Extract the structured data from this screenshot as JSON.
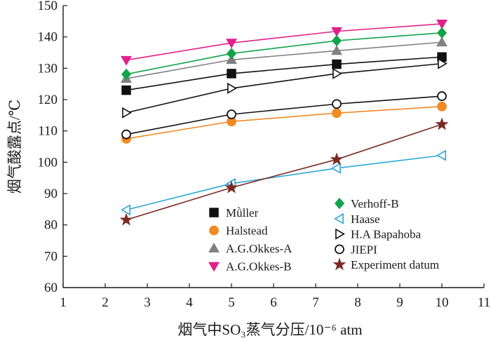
{
  "chart_data": {
    "type": "line",
    "title": "",
    "xlabel": "烟气中SO₃蒸气分压/10⁻⁶ atm",
    "ylabel": "烟气酸露点/℃",
    "xlim": [
      1,
      11
    ],
    "ylim": [
      60,
      150
    ],
    "x_ticks": [
      "1",
      "2",
      "3",
      "4",
      "5",
      "6",
      "7",
      "8",
      "9",
      "10",
      "11"
    ],
    "y_ticks": [
      "60",
      "70",
      "80",
      "90",
      "100",
      "110",
      "120",
      "130",
      "140",
      "150"
    ],
    "x": [
      2.5,
      5,
      7.5,
      10
    ],
    "grid": false,
    "legend_layout": "two columns inside plot, lower right",
    "series": [
      {
        "name": "Mǜller",
        "values": [
          123,
          128.3,
          131.3,
          133.6
        ],
        "color": "#111111",
        "line_color": "#111111",
        "marker": "square-filled"
      },
      {
        "name": "Halstead",
        "values": [
          107.5,
          113,
          115.7,
          117.8
        ],
        "color": "#f08a24",
        "line_color": "#f08a24",
        "marker": "circle-filled"
      },
      {
        "name": "A.G.Okkes-A",
        "values": [
          126.7,
          132.7,
          135.6,
          138.3
        ],
        "color": "#808080",
        "line_color": "#808080",
        "marker": "triangle-up-filled"
      },
      {
        "name": "A.G.Okkes-B",
        "values": [
          132.6,
          138.1,
          141.8,
          144.2
        ],
        "color": "#e0218a",
        "line_color": "#e0218a",
        "marker": "triangle-down-filled"
      },
      {
        "name": "Verhoff-B",
        "values": [
          128.1,
          134.7,
          138.8,
          141.3
        ],
        "color": "#12a34a",
        "line_color": "#12a34a",
        "marker": "diamond-filled"
      },
      {
        "name": "Haase",
        "values": [
          84.8,
          93.2,
          98.1,
          102.2
        ],
        "color": "#2aa7d6",
        "line_color": "#2aa7d6",
        "marker": "triangle-left-open"
      },
      {
        "name": "H.A Bapahoba",
        "values": [
          115.8,
          123.6,
          128.3,
          131.5
        ],
        "color": "#111111",
        "line_color": "#111111",
        "marker": "triangle-right-open"
      },
      {
        "name": "JIEPI",
        "values": [
          108.9,
          115.3,
          118.6,
          121.1
        ],
        "color": "#111111",
        "line_color": "#111111",
        "marker": "circle-open"
      },
      {
        "name": "Experiment datum",
        "values": [
          81.6,
          91.9,
          100.9,
          112.1
        ],
        "color": "#7a2a22",
        "line_color": "#7a2a22",
        "marker": "star-filled"
      }
    ]
  }
}
